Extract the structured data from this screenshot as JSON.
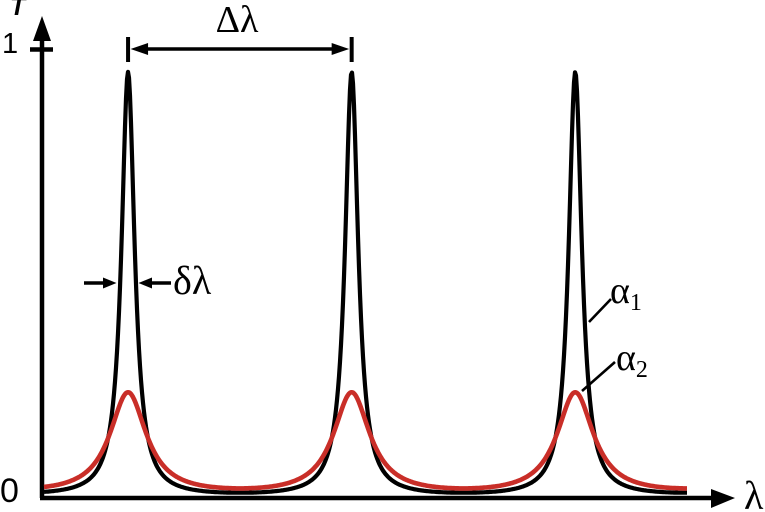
{
  "figure": {
    "background_color": "#ffffff",
    "axis_color": "#000000",
    "annotation_color": "#000000"
  },
  "chart_data": {
    "type": "line",
    "title": "",
    "xlabel": "λ",
    "ylabel": "T",
    "y_tick_labels": {
      "unity": "1",
      "origin": "0"
    },
    "x_axis_numeric_ticks": "none",
    "grid": false,
    "legend_position": "inline-labels-right",
    "model": "T(x) = peak_T / (1 + F·sin²(π(x−x0)/period))  (Airy transmission function)",
    "x_range_units": [
      0,
      10.1
    ],
    "ylim": [
      0,
      1.07
    ],
    "peak_positions_x": [
      1.28,
      4.53,
      7.78
    ],
    "period_x": 3.25,
    "series": [
      {
        "name": "alpha1",
        "label_base": "α",
        "label_sub": "1",
        "color": "#000000",
        "peak_T": 0.947,
        "airy_F": 80,
        "stroke_px": 4.2
      },
      {
        "name": "alpha2",
        "label_base": "α",
        "label_sub": "2",
        "color": "#c92e28",
        "peak_T": 0.235,
        "airy_F": 10,
        "stroke_px": 4.6
      }
    ],
    "annotations": [
      {
        "id": "fsr",
        "label": "Δλ",
        "between_peaks": [
          1.28,
          4.53
        ]
      },
      {
        "id": "linewidth",
        "label": "δλ",
        "at_peak": 1.28
      }
    ]
  }
}
